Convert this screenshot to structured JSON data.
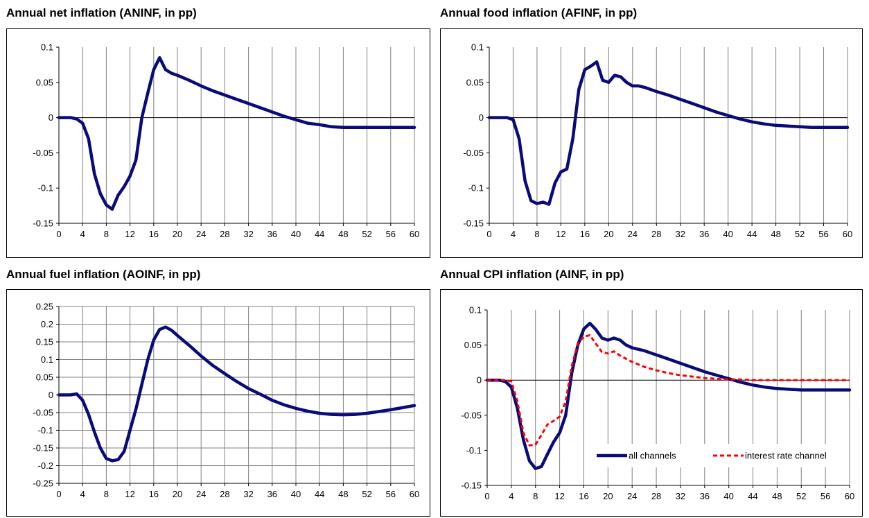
{
  "chart_data": [
    {
      "type": "line",
      "title": "Annual net inflation (ANINF, in pp)",
      "xlabel": "",
      "ylabel": "",
      "xlim": [
        0,
        60
      ],
      "ylim": [
        -0.15,
        0.1
      ],
      "x_ticks": [
        "0",
        "4",
        "8",
        "12",
        "16",
        "20",
        "24",
        "28",
        "32",
        "36",
        "40",
        "44",
        "48",
        "52",
        "56",
        "60"
      ],
      "y_ticks": [
        "0.1",
        "0.05",
        "0",
        "-0.05",
        "-0.1",
        "-0.15"
      ],
      "y_tick_values": [
        0.1,
        0.05,
        0,
        -0.05,
        -0.1,
        -0.15
      ],
      "grid": "vertical",
      "series": [
        {
          "color": "#0a0a78",
          "x": [
            0,
            1,
            2,
            3,
            4,
            5,
            6,
            7,
            8,
            9,
            10,
            11,
            12,
            13,
            14,
            15,
            16,
            17,
            18,
            19,
            20,
            22,
            24,
            26,
            28,
            30,
            32,
            34,
            36,
            38,
            40,
            42,
            44,
            46,
            48,
            50,
            52,
            54,
            56,
            58,
            60
          ],
          "y": [
            0,
            0,
            0,
            -0.002,
            -0.008,
            -0.03,
            -0.08,
            -0.108,
            -0.124,
            -0.13,
            -0.11,
            -0.098,
            -0.083,
            -0.06,
            0,
            0.035,
            0.068,
            0.085,
            0.068,
            0.063,
            0.06,
            0.053,
            0.045,
            0.038,
            0.032,
            0.026,
            0.02,
            0.014,
            0.008,
            0.002,
            -0.003,
            -0.008,
            -0.01,
            -0.013,
            -0.014,
            -0.014,
            -0.014,
            -0.014,
            -0.014,
            -0.014,
            -0.014
          ]
        }
      ]
    },
    {
      "type": "line",
      "title": "Annual food inflation (AFINF, in pp)",
      "xlabel": "",
      "ylabel": "",
      "xlim": [
        0,
        60
      ],
      "ylim": [
        -0.15,
        0.1
      ],
      "x_ticks": [
        "0",
        "4",
        "8",
        "12",
        "16",
        "20",
        "24",
        "28",
        "32",
        "36",
        "40",
        "44",
        "48",
        "52",
        "56",
        "60"
      ],
      "y_ticks": [
        "0.1",
        "0.05",
        "0",
        "-0.05",
        "-0.1",
        "-0.15"
      ],
      "y_tick_values": [
        0.1,
        0.05,
        0,
        -0.05,
        -0.1,
        -0.15
      ],
      "grid": "vertical",
      "series": [
        {
          "color": "#0a0a78",
          "x": [
            0,
            1,
            2,
            3,
            4,
            5,
            6,
            7,
            8,
            9,
            10,
            11,
            12,
            13,
            14,
            15,
            16,
            17,
            18,
            19,
            20,
            21,
            22,
            23,
            24,
            25,
            26,
            28,
            30,
            32,
            34,
            36,
            38,
            40,
            42,
            44,
            46,
            48,
            50,
            52,
            54,
            56,
            58,
            60
          ],
          "y": [
            0,
            0,
            0,
            0,
            -0.003,
            -0.03,
            -0.09,
            -0.118,
            -0.122,
            -0.12,
            -0.123,
            -0.093,
            -0.077,
            -0.073,
            -0.03,
            0.04,
            0.068,
            0.073,
            0.079,
            0.053,
            0.05,
            0.06,
            0.058,
            0.05,
            0.045,
            0.045,
            0.043,
            0.037,
            0.032,
            0.026,
            0.02,
            0.014,
            0.008,
            0.003,
            -0.002,
            -0.006,
            -0.009,
            -0.011,
            -0.012,
            -0.013,
            -0.014,
            -0.014,
            -0.014,
            -0.014
          ]
        }
      ]
    },
    {
      "type": "line",
      "title": "Annual fuel inflation (AOINF, in pp)",
      "xlabel": "",
      "ylabel": "",
      "xlim": [
        0,
        60
      ],
      "ylim": [
        -0.25,
        0.25
      ],
      "x_ticks": [
        "0",
        "4",
        "8",
        "12",
        "16",
        "20",
        "24",
        "28",
        "32",
        "36",
        "40",
        "44",
        "48",
        "52",
        "56",
        "60"
      ],
      "y_ticks": [
        "0.25",
        "0.2",
        "0.15",
        "0.1",
        "0.05",
        "0",
        "-0.05",
        "-0.1",
        "-0.15",
        "-0.2",
        "-0.25"
      ],
      "y_tick_values": [
        0.25,
        0.2,
        0.15,
        0.1,
        0.05,
        0,
        -0.05,
        -0.1,
        -0.15,
        -0.2,
        -0.25
      ],
      "grid": "both",
      "series": [
        {
          "color": "#0a0a78",
          "x": [
            0,
            1,
            2,
            3,
            4,
            5,
            6,
            7,
            8,
            9,
            10,
            11,
            12,
            13,
            14,
            15,
            16,
            17,
            18,
            19,
            20,
            22,
            24,
            26,
            28,
            30,
            32,
            34,
            36,
            38,
            40,
            42,
            44,
            46,
            48,
            50,
            52,
            54,
            56,
            58,
            60
          ],
          "y": [
            0,
            0,
            0,
            0.003,
            -0.015,
            -0.055,
            -0.105,
            -0.15,
            -0.18,
            -0.186,
            -0.183,
            -0.16,
            -0.1,
            -0.04,
            0.03,
            0.1,
            0.155,
            0.185,
            0.192,
            0.183,
            0.168,
            0.14,
            0.11,
            0.083,
            0.06,
            0.038,
            0.018,
            0.002,
            -0.015,
            -0.028,
            -0.038,
            -0.046,
            -0.052,
            -0.055,
            -0.056,
            -0.055,
            -0.052,
            -0.047,
            -0.042,
            -0.036,
            -0.03
          ]
        }
      ]
    },
    {
      "type": "line",
      "title": "Annual CPI inflation (AINF, in pp)",
      "xlabel": "",
      "ylabel": "",
      "xlim": [
        0,
        60
      ],
      "ylim": [
        -0.15,
        0.1
      ],
      "x_ticks": [
        "0",
        "4",
        "8",
        "12",
        "16",
        "20",
        "24",
        "28",
        "32",
        "36",
        "40",
        "44",
        "48",
        "52",
        "56",
        "60"
      ],
      "y_ticks": [
        "0.1",
        "0.05",
        "0",
        "-0.05",
        "-0.1",
        "-0.15"
      ],
      "y_tick_values": [
        0.1,
        0.05,
        0,
        -0.05,
        -0.1,
        -0.15
      ],
      "grid": "vertical",
      "legend": "bottom-right",
      "series": [
        {
          "name": "all channels",
          "color": "#0a0a78",
          "style": "solid",
          "x": [
            0,
            1,
            2,
            3,
            4,
            5,
            6,
            7,
            8,
            9,
            10,
            11,
            12,
            13,
            14,
            15,
            16,
            17,
            18,
            19,
            20,
            21,
            22,
            23,
            24,
            26,
            28,
            30,
            32,
            34,
            36,
            38,
            40,
            42,
            44,
            46,
            48,
            50,
            52,
            54,
            56,
            58,
            60
          ],
          "y": [
            0,
            0,
            0,
            -0.002,
            -0.01,
            -0.04,
            -0.085,
            -0.115,
            -0.126,
            -0.123,
            -0.105,
            -0.088,
            -0.075,
            -0.05,
            0.01,
            0.05,
            0.073,
            0.081,
            0.072,
            0.06,
            0.057,
            0.06,
            0.057,
            0.05,
            0.046,
            0.042,
            0.036,
            0.03,
            0.024,
            0.018,
            0.012,
            0.007,
            0.002,
            -0.003,
            -0.007,
            -0.01,
            -0.012,
            -0.013,
            -0.014,
            -0.014,
            -0.014,
            -0.014,
            -0.014
          ]
        },
        {
          "name": "interest rate channel",
          "color": "#ff0000",
          "style": "dashed",
          "x": [
            0,
            1,
            2,
            3,
            4,
            5,
            6,
            7,
            8,
            9,
            10,
            11,
            12,
            13,
            14,
            15,
            16,
            17,
            18,
            19,
            20,
            21,
            22,
            24,
            26,
            28,
            30,
            32,
            34,
            36,
            38,
            40,
            42,
            44,
            46,
            48,
            50,
            52,
            54,
            56,
            58,
            60
          ],
          "y": [
            0,
            0,
            0,
            0,
            -0.002,
            -0.03,
            -0.075,
            -0.093,
            -0.092,
            -0.078,
            -0.063,
            -0.058,
            -0.052,
            -0.03,
            0.02,
            0.052,
            0.062,
            0.064,
            0.052,
            0.04,
            0.038,
            0.041,
            0.035,
            0.026,
            0.019,
            0.014,
            0.01,
            0.007,
            0.005,
            0.003,
            0.002,
            0.001,
            0.001,
            0,
            0,
            0,
            0,
            0,
            0,
            0,
            0,
            0
          ]
        }
      ]
    }
  ]
}
